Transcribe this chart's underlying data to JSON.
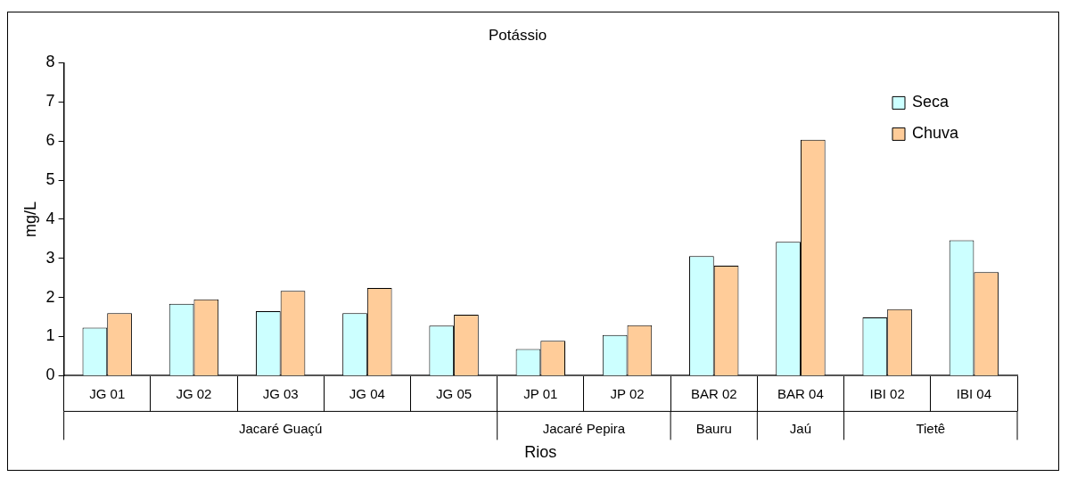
{
  "chart_data": {
    "type": "bar",
    "title": "Potássio",
    "xlabel": "Rios",
    "ylabel": "mg/L",
    "categories": [
      "JG 01",
      "JG 02",
      "JG 03",
      "JG 04",
      "JG 05",
      "JP 01",
      "JP 02",
      "BAR 02",
      "BAR 04",
      "IBI 02",
      "IBI 04"
    ],
    "series": [
      {
        "name": "Seca",
        "color": "#ccffff",
        "values": [
          1.23,
          1.84,
          1.65,
          1.6,
          1.28,
          0.68,
          1.04,
          3.06,
          3.42,
          1.49,
          3.46
        ]
      },
      {
        "name": "Chuva",
        "color": "#ffcc99",
        "values": [
          1.6,
          1.95,
          2.17,
          2.24,
          1.56,
          0.89,
          1.29,
          2.81,
          6.03,
          1.7,
          2.65
        ]
      }
    ],
    "ylim": [
      0,
      8
    ],
    "yticks": [
      0,
      1,
      2,
      3,
      4,
      5,
      6,
      7,
      8
    ],
    "grid": false,
    "legend": "top right",
    "annotations": [
      "Jacaré Guaçú",
      "Jacaré Pepira",
      "Bauru",
      "Jaú",
      "Tietê"
    ]
  }
}
